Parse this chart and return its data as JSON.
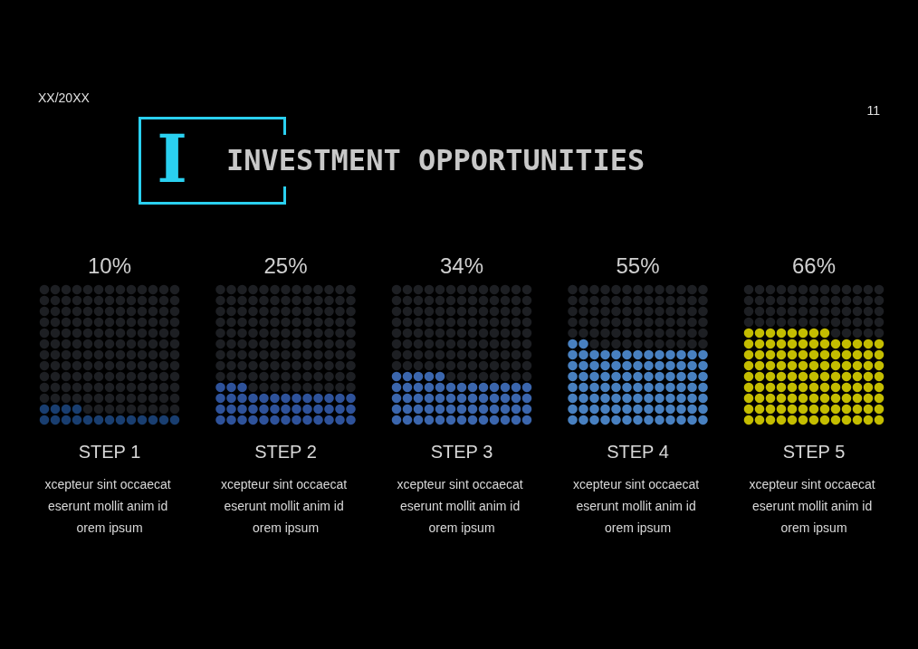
{
  "chart_data": {
    "type": "other",
    "title": "INVESTMENT OPPORTUNITIES",
    "categories": [
      "STEP 1",
      "STEP 2",
      "STEP 3",
      "STEP 4",
      "STEP 5"
    ],
    "values": [
      10,
      25,
      34,
      55,
      66
    ],
    "value_labels": [
      "10%",
      "25%",
      "34%",
      "55%",
      "66%"
    ],
    "colors": [
      "#1f4e8c",
      "#3a67c0",
      "#4a7fd8",
      "#5aa0f0",
      "#f5ec00"
    ],
    "annotations": [
      "XX/20XX",
      "11",
      "I",
      "xcepteur sint occaecat eserunt mollit anim id orem ipsum",
      "xcepteur sint occaecat eserunt mollit anim id orem ipsum",
      "xcepteur sint occaecat eserunt mollit anim id orem ipsum",
      "xcepteur sint occaecat eserunt mollit anim id orem ipsum",
      "xcepteur sint occaecat eserunt mollit anim id orem ipsum"
    ]
  }
}
